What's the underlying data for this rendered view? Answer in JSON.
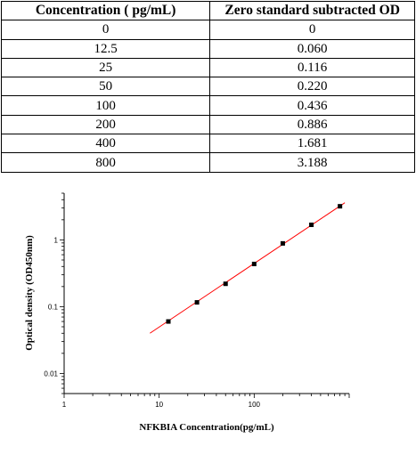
{
  "table": {
    "headers": [
      "Concentration ( pg/mL)",
      "Zero standard subtracted OD"
    ],
    "rows": [
      [
        "0",
        "0"
      ],
      [
        "12.5",
        "0.060"
      ],
      [
        "25",
        "0.116"
      ],
      [
        "50",
        "0.220"
      ],
      [
        "100",
        "0.436"
      ],
      [
        "200",
        "0.886"
      ],
      [
        "400",
        "1.681"
      ],
      [
        "800",
        "3.188"
      ]
    ]
  },
  "chart_data": {
    "type": "scatter",
    "xscale": "log",
    "yscale": "log",
    "xlabel": "NFKBIA Concentration(pg/mL)",
    "ylabel": "Optical density (OD450nm)",
    "xlim": [
      1,
      1000
    ],
    "ylim": [
      0.005,
      5
    ],
    "xticks": [
      1,
      10,
      100
    ],
    "xtick_labels": [
      "1",
      "10",
      "100"
    ],
    "yticks": [
      0.01,
      0.1,
      1
    ],
    "ytick_labels": [
      "0.01",
      "0.1",
      "1"
    ],
    "grid": false,
    "series": [
      {
        "x": [
          12.5,
          25,
          50,
          100,
          200,
          400,
          800
        ],
        "y": [
          0.06,
          0.116,
          0.22,
          0.436,
          0.886,
          1.681,
          3.188
        ],
        "marker_color": "#000000"
      }
    ],
    "fit_line": {
      "x": [
        8,
        900
      ],
      "y": [
        0.04,
        3.6
      ],
      "color": "#ff0000"
    }
  }
}
